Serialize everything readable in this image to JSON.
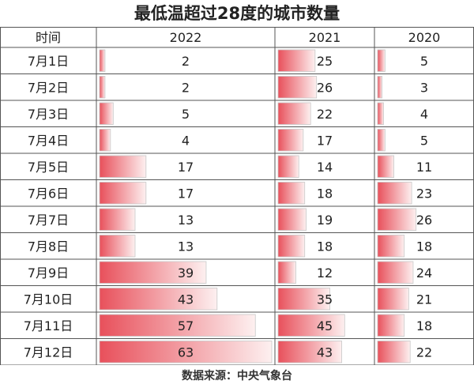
{
  "title": "最低温超过28度的城市数量",
  "source": "数据来源：中央气象台",
  "colors": {
    "bar_dark": "#e8505b",
    "bar_light": "#fdf0f0",
    "grid": "#555555",
    "text": "#222222"
  },
  "chart_data": {
    "type": "table",
    "title": "最低温超过28度的城市数量",
    "row_header": "时间",
    "categories": [
      "7月1日",
      "7月2日",
      "7月3日",
      "7月4日",
      "7月5日",
      "7月6日",
      "7月7日",
      "7月8日",
      "7月9日",
      "7月10日",
      "7月11日",
      "7月12日"
    ],
    "series": [
      {
        "name": "2022",
        "values": [
          2,
          2,
          5,
          4,
          17,
          17,
          13,
          13,
          39,
          43,
          57,
          63
        ]
      },
      {
        "name": "2021",
        "values": [
          25,
          26,
          22,
          17,
          14,
          18,
          19,
          18,
          12,
          35,
          45,
          43
        ]
      },
      {
        "name": "2020",
        "values": [
          5,
          3,
          4,
          5,
          11,
          23,
          26,
          18,
          24,
          21,
          18,
          22
        ]
      }
    ]
  }
}
